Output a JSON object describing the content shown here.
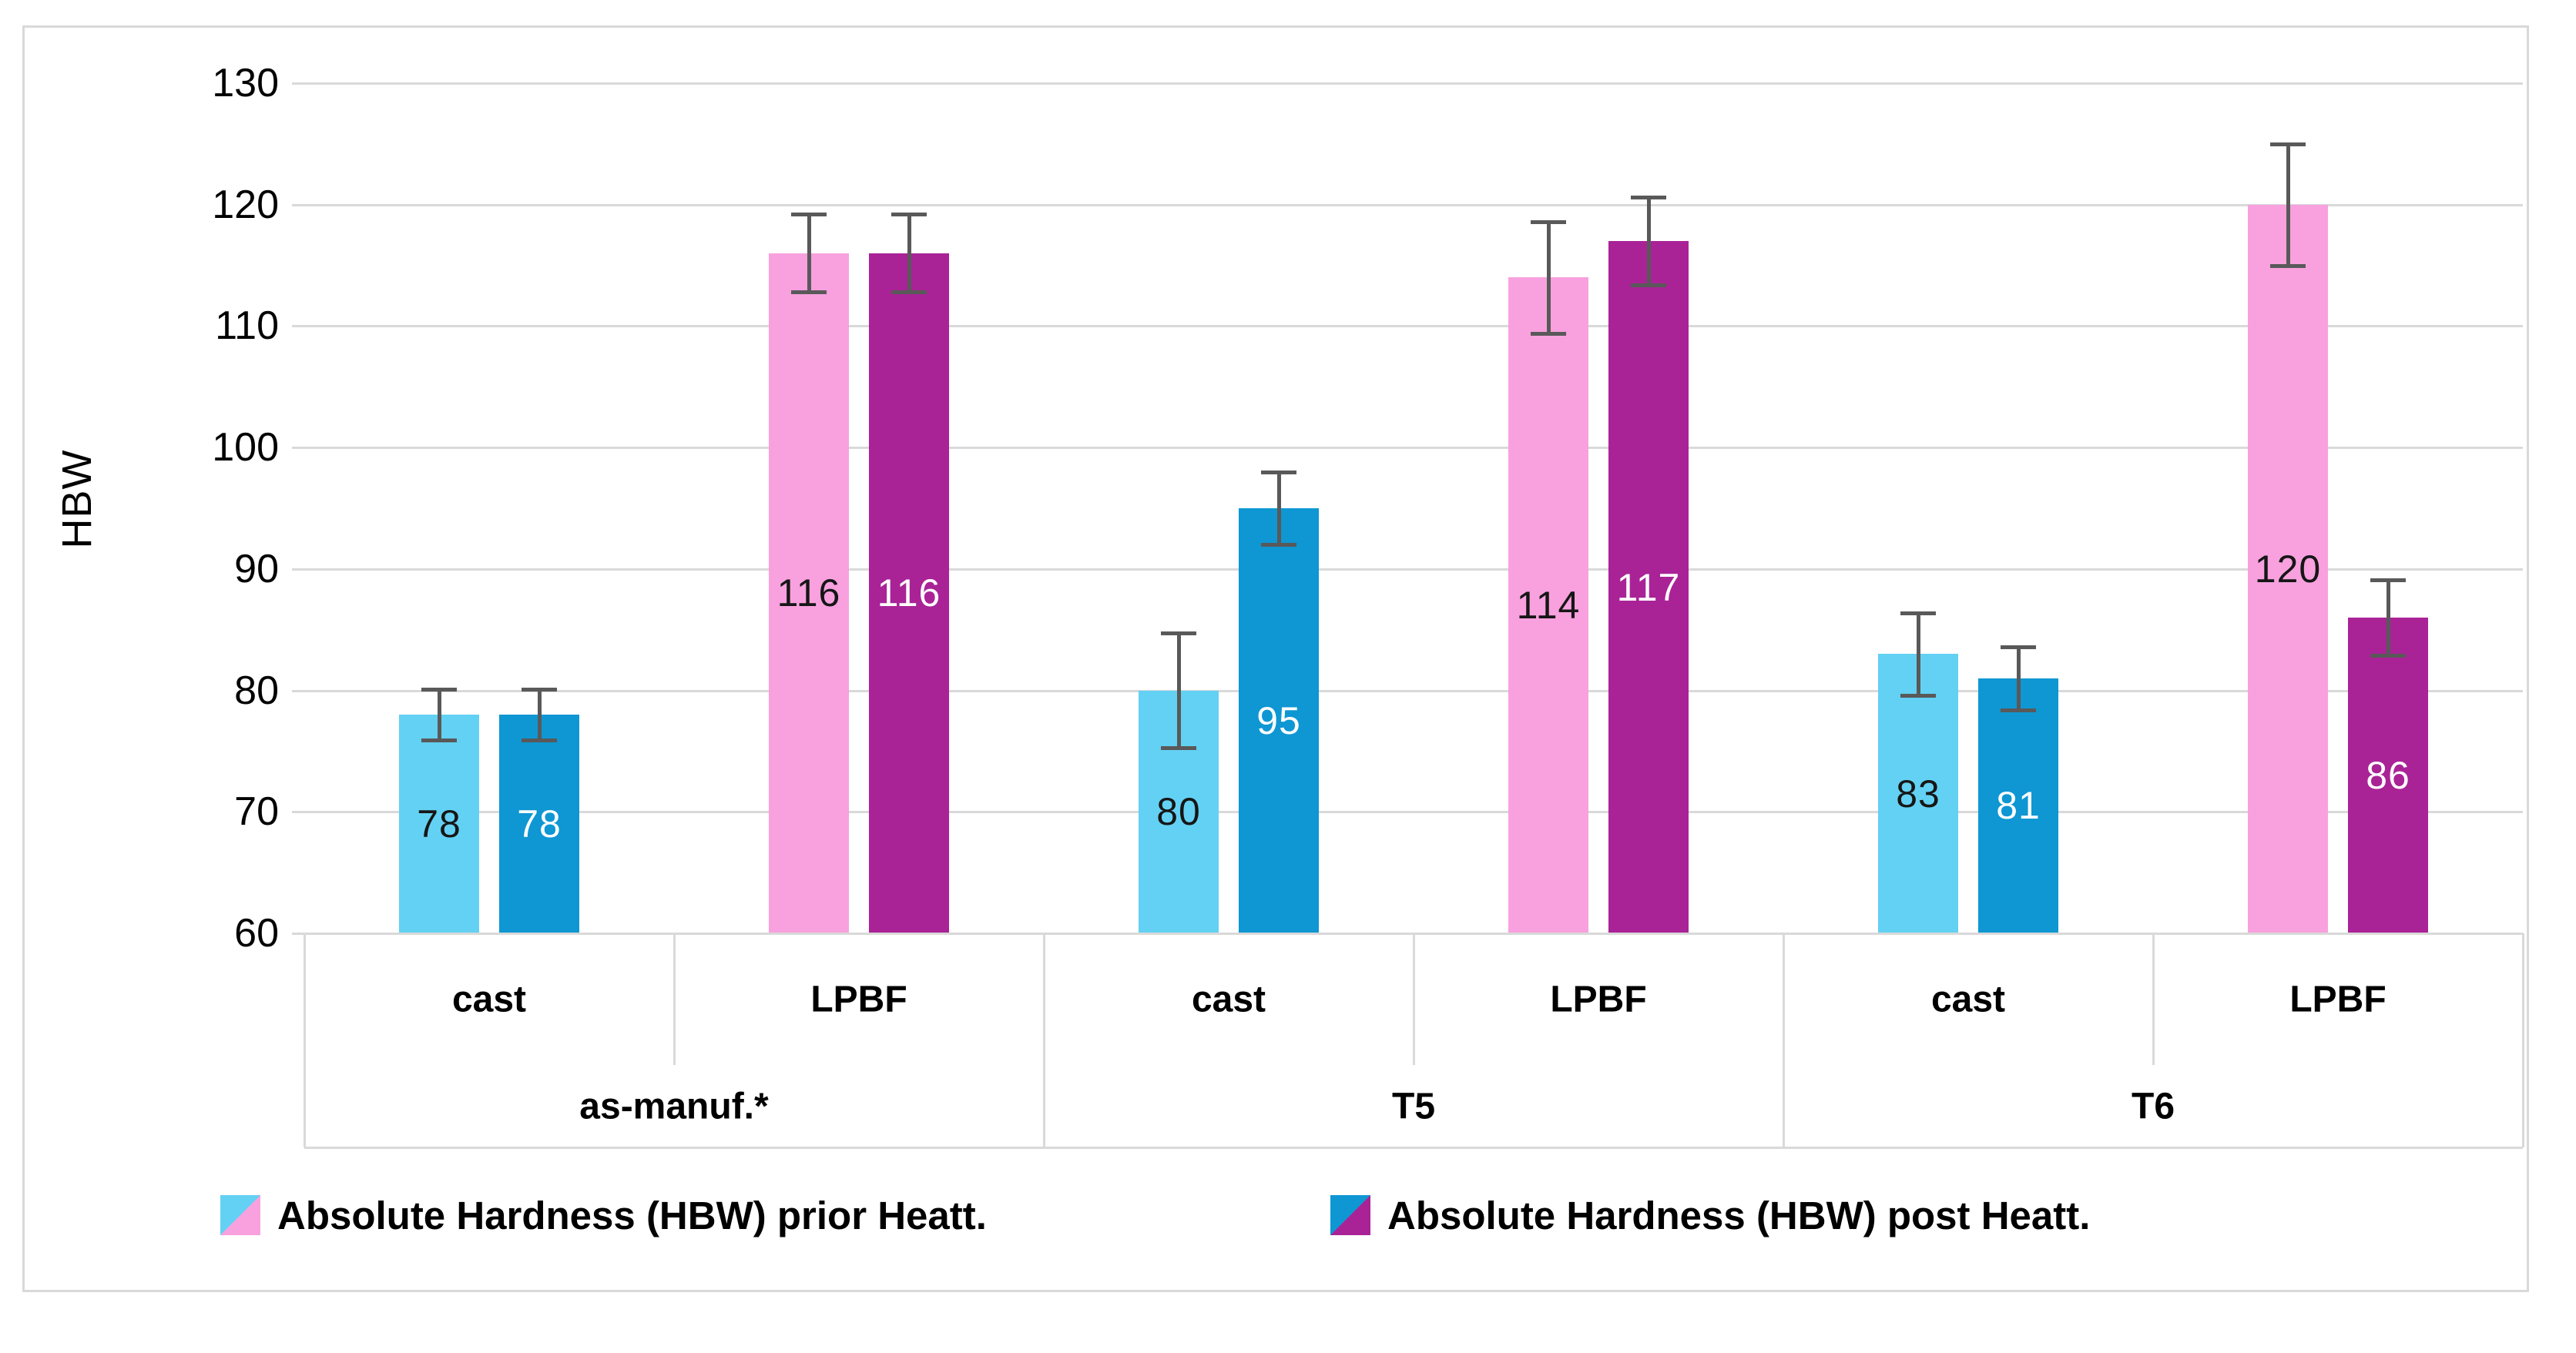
{
  "figure": {
    "ylabel": "HBW",
    "background": "#FFFFFF",
    "border_color": "#D9D9D9"
  },
  "legend": {
    "items": [
      {
        "label": "Absolute Hardness (HBW) prior Heatt.",
        "swatch_colors": [
          "#63D1F3",
          "#F8A1DE"
        ]
      },
      {
        "label": "Absolute Hardness (HBW) post Heatt.",
        "swatch_colors": [
          "#0E97D3",
          "#A92397"
        ]
      }
    ]
  },
  "chart_data": {
    "type": "bar",
    "title": "",
    "xlabel": "",
    "ylabel": "HBW",
    "ylim": [
      60,
      130
    ],
    "yticks": [
      60,
      70,
      80,
      90,
      100,
      110,
      120,
      130
    ],
    "grid": true,
    "legend_position": "bottom",
    "categories": [
      "as-manuf.* cast",
      "as-manuf.* LPBF",
      "T5 cast",
      "T5 LPBF",
      "T6 cast",
      "T6 LPBF"
    ],
    "series": [
      {
        "name": "Absolute Hardness (HBW) prior Heatt.",
        "values": [
          78,
          116,
          80,
          114,
          83,
          120
        ]
      },
      {
        "name": "Absolute Hardness (HBW) post Heatt.",
        "values": [
          78,
          116,
          95,
          117,
          81,
          86
        ]
      }
    ],
    "groups": [
      {
        "label": "as-manuf.*"
      },
      {
        "label": "T5"
      },
      {
        "label": "T6"
      }
    ],
    "cells": [
      {
        "group": "as-manuf.*",
        "label": "cast",
        "bars": [
          {
            "series": "prior",
            "value": 78,
            "error": 2.1,
            "fill": "#63D1F3",
            "text": "#161616"
          },
          {
            "series": "post",
            "value": 78,
            "error": 2.1,
            "fill": "#0E97D3",
            "text": "#FFFFFF"
          }
        ]
      },
      {
        "group": "as-manuf.*",
        "label": "LPBF",
        "bars": [
          {
            "series": "prior",
            "value": 116,
            "error": 3.2,
            "fill": "#F8A1DE",
            "text": "#161616"
          },
          {
            "series": "post",
            "value": 116,
            "error": 3.2,
            "fill": "#A92397",
            "text": "#FFFFFF"
          }
        ]
      },
      {
        "group": "T5",
        "label": "cast",
        "bars": [
          {
            "series": "prior",
            "value": 80,
            "error": 4.7,
            "fill": "#63D1F3",
            "text": "#161616"
          },
          {
            "series": "post",
            "value": 95,
            "error": 3.0,
            "fill": "#0E97D3",
            "text": "#FFFFFF"
          }
        ]
      },
      {
        "group": "T5",
        "label": "LPBF",
        "bars": [
          {
            "series": "prior",
            "value": 114,
            "error": 4.6,
            "fill": "#F8A1DE",
            "text": "#161616"
          },
          {
            "series": "post",
            "value": 117,
            "error": 3.6,
            "fill": "#A92397",
            "text": "#FFFFFF"
          }
        ]
      },
      {
        "group": "T6",
        "label": "cast",
        "bars": [
          {
            "series": "prior",
            "value": 83,
            "error": 3.4,
            "fill": "#63D1F3",
            "text": "#161616"
          },
          {
            "series": "post",
            "value": 81,
            "error": 2.6,
            "fill": "#0E97D3",
            "text": "#FFFFFF"
          }
        ]
      },
      {
        "group": "T6",
        "label": "LPBF",
        "bars": [
          {
            "series": "prior",
            "value": 120,
            "error": 5.0,
            "fill": "#F8A1DE",
            "text": "#161616"
          },
          {
            "series": "post",
            "value": 86,
            "error": 3.1,
            "fill": "#A92397",
            "text": "#FFFFFF"
          }
        ]
      }
    ],
    "colors": {
      "gridline": "#D9D9D9",
      "error_bar": "#595959"
    }
  }
}
